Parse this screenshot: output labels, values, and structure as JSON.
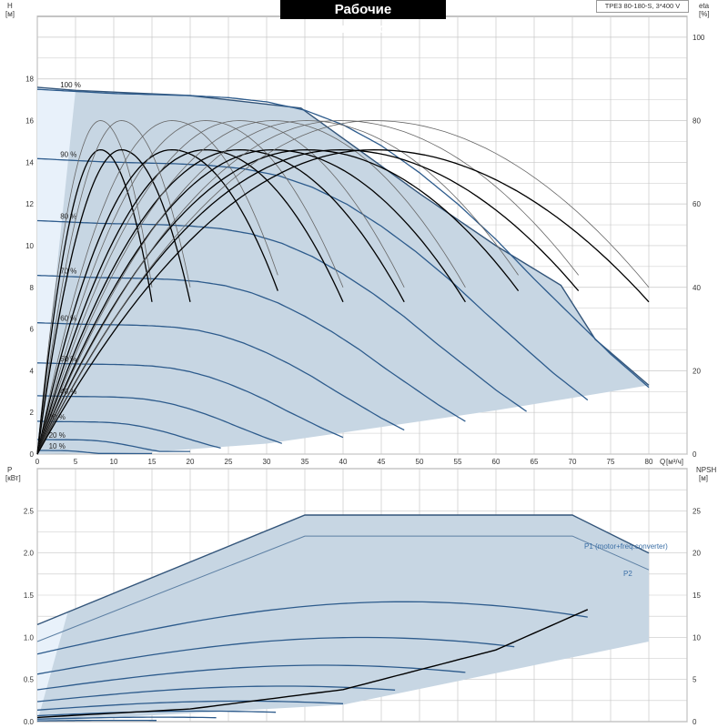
{
  "title": "Рабочие характеристики",
  "model": "TPE3 80-180-S, 3*400 V",
  "colors": {
    "area_fill": "#c7d6e3",
    "area_fill_light": "#e8f1fa",
    "area_edge": "#33557a",
    "head_curve": "#2d5b8c",
    "eff_thin": "#666666",
    "eff_thick": "#000000",
    "grid": "#c8c8c8"
  },
  "top": {
    "axis_h_label": "H",
    "axis_h_unit": "[м]",
    "axis_eta_label": "eta",
    "axis_eta_unit": "[%]",
    "axis_q_label": "Q",
    "axis_q_unit": "[м³/ч]",
    "q_ticks": [
      "0",
      "5",
      "10",
      "15",
      "20",
      "25",
      "30",
      "35",
      "40",
      "45",
      "50",
      "55",
      "60",
      "65",
      "70",
      "75",
      "80"
    ],
    "h_ticks": [
      "0",
      "2",
      "4",
      "6",
      "8",
      "10",
      "12",
      "14",
      "16",
      "18"
    ],
    "eta_ticks": [
      "0",
      "20",
      "40",
      "60",
      "80",
      "100"
    ],
    "curve_labels": [
      "100 %",
      "90 %",
      "80 %",
      "70 %",
      "60 %",
      "50 %",
      "40 %",
      "30 %",
      "20 %",
      "10 %"
    ]
  },
  "bottom": {
    "axis_p_label": "P",
    "axis_p_unit": "[кВт]",
    "axis_npsh_label": "NPSH",
    "axis_npsh_unit": "[м]",
    "p_ticks": [
      "0.0",
      "0.5",
      "1.0",
      "1.5",
      "2.0",
      "2.5"
    ],
    "npsh_ticks": [
      "0",
      "5",
      "10",
      "15",
      "20",
      "25"
    ],
    "p1_label": "P1 (motor+freq.converter)",
    "p2_label": "P2"
  },
  "chart_data": [
    {
      "type": "line",
      "title": "Рабочие характеристики",
      "xlabel": "Q [м³/ч]",
      "ylabel": "H [м]",
      "y2label": "eta [%]",
      "xlim": [
        0,
        85
      ],
      "ylim": [
        0,
        20
      ],
      "y2lim": [
        0,
        100
      ],
      "grid": true,
      "head_series": [
        {
          "name": "100 %",
          "speed": 1.0,
          "q_max": 80
        },
        {
          "name": "90 %",
          "speed": 0.9,
          "q_max": 72
        },
        {
          "name": "80 %",
          "speed": 0.8,
          "q_max": 64
        },
        {
          "name": "70 %",
          "speed": 0.7,
          "q_max": 56
        },
        {
          "name": "60 %",
          "speed": 0.6,
          "q_max": 48
        },
        {
          "name": "50 %",
          "speed": 0.5,
          "q_max": 40
        },
        {
          "name": "40 %",
          "speed": 0.4,
          "q_max": 32
        },
        {
          "name": "30 %",
          "speed": 0.3,
          "q_max": 24
        },
        {
          "name": "20 %",
          "speed": 0.2,
          "q_max": 20
        },
        {
          "name": "10 %",
          "speed": 0.1,
          "q_max": 15
        }
      ],
      "head_curve_100": {
        "q": [
          0,
          5,
          10,
          15,
          20,
          25,
          30,
          35,
          40,
          45,
          50,
          55,
          60,
          65,
          70,
          75,
          80
        ],
        "h": [
          17.5,
          17.4,
          17.3,
          17.25,
          17.2,
          17.1,
          16.9,
          16.5,
          15.8,
          14.8,
          13.5,
          12.0,
          10.3,
          8.4,
          6.6,
          4.8,
          3.2
        ]
      },
      "max_envelope": {
        "q": [
          0,
          5,
          20,
          34.5,
          50,
          60,
          68.5,
          73,
          80
        ],
        "h": [
          17.6,
          17.45,
          17.2,
          16.6,
          12.5,
          10.0,
          8.1,
          5.5,
          3.3
        ]
      },
      "min_envelope": {
        "q": [
          0,
          15,
          30,
          45,
          60,
          70,
          80
        ],
        "h": [
          0,
          0.1,
          0.5,
          1.3,
          2.1,
          2.7,
          3.3
        ]
      },
      "efficiency_peaks": {
        "thin_peak_pct": 80,
        "thick_peak_pct": 73,
        "q_end": [
          15,
          20,
          32,
          40,
          48,
          56,
          64,
          72,
          80
        ],
        "eta_end": [
          33,
          40,
          40,
          40,
          38,
          40,
          40,
          38,
          40
        ]
      }
    },
    {
      "type": "line",
      "xlabel": "Q [м³/ч]",
      "ylabel": "P [кВт]",
      "y2label": "NPSH [м]",
      "xlim": [
        0,
        85
      ],
      "ylim": [
        0,
        2.75
      ],
      "y2lim": [
        0,
        27.5
      ],
      "grid": true,
      "series": [
        {
          "name": "P1 (motor+freq.converter)",
          "q": [
            0,
            35,
            50,
            70,
            80
          ],
          "p": [
            1.15,
            2.45,
            2.45,
            2.45,
            2.0
          ]
        },
        {
          "name": "P2",
          "q": [
            0,
            35,
            50,
            70,
            80
          ],
          "p": [
            0.95,
            2.2,
            2.2,
            2.2,
            1.8
          ]
        }
      ],
      "npsh": {
        "q": [
          0,
          20,
          40,
          60,
          72
        ],
        "npsh": [
          0.5,
          1.5,
          3.8,
          8.5,
          13.3
        ]
      }
    }
  ]
}
